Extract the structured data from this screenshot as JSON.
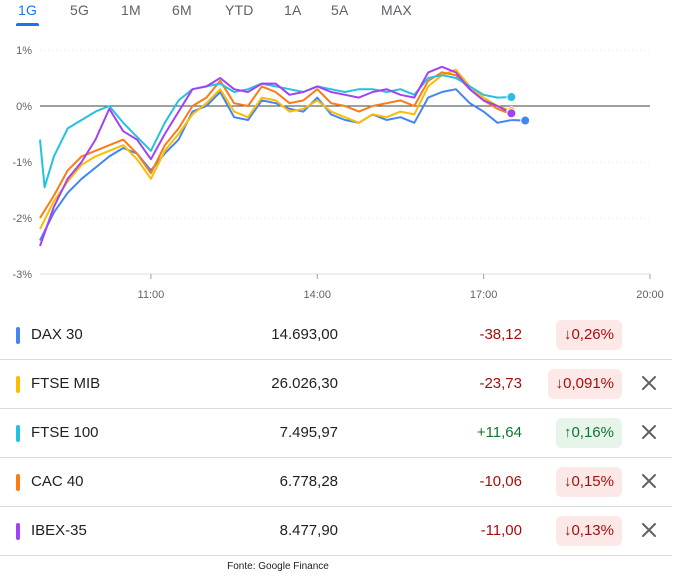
{
  "tabs": [
    {
      "label": "1G",
      "active": true
    },
    {
      "label": "5G",
      "active": false
    },
    {
      "label": "1M",
      "active": false
    },
    {
      "label": "6M",
      "active": false
    },
    {
      "label": "YTD",
      "active": false
    },
    {
      "label": "1A",
      "active": false
    },
    {
      "label": "5A",
      "active": false
    },
    {
      "label": "MAX",
      "active": false
    }
  ],
  "chart_data": {
    "type": "line",
    "ylim": [
      -3,
      1
    ],
    "yticks": [
      {
        "value": 1,
        "label": "1%"
      },
      {
        "value": 0,
        "label": "0%"
      },
      {
        "value": -1,
        "label": "-1%"
      },
      {
        "value": -2,
        "label": "-2%"
      },
      {
        "value": -3,
        "label": "-3%"
      }
    ],
    "xlim": [
      "09:00",
      "20:00"
    ],
    "xticks": [
      "11:00",
      "14:00",
      "17:00",
      "20:00"
    ],
    "series": [
      {
        "name": "DAX 30",
        "color": "#4285f4",
        "x": [
          "09:00",
          "09:15",
          "09:30",
          "09:45",
          "10:00",
          "10:15",
          "10:30",
          "10:45",
          "11:00",
          "11:15",
          "11:30",
          "11:45",
          "12:00",
          "12:15",
          "12:30",
          "12:45",
          "13:00",
          "13:15",
          "13:30",
          "13:45",
          "14:00",
          "14:15",
          "14:30",
          "14:45",
          "15:00",
          "15:15",
          "15:30",
          "15:45",
          "16:00",
          "16:15",
          "16:30",
          "16:45",
          "17:00",
          "17:15",
          "17:30",
          "17:45"
        ],
        "y": [
          -2.4,
          -1.9,
          -1.55,
          -1.3,
          -1.1,
          -0.9,
          -0.75,
          -0.85,
          -1.15,
          -0.85,
          -0.6,
          -0.1,
          0.0,
          0.25,
          -0.2,
          -0.25,
          0.1,
          0.05,
          -0.05,
          -0.1,
          0.15,
          -0.15,
          -0.25,
          -0.3,
          -0.15,
          -0.25,
          -0.2,
          -0.3,
          0.15,
          0.25,
          0.3,
          0.05,
          -0.1,
          -0.3,
          -0.25,
          -0.26
        ]
      },
      {
        "name": "FTSE MIB",
        "color": "#fbbc04",
        "x": [
          "09:00",
          "09:15",
          "09:30",
          "09:45",
          "10:00",
          "10:15",
          "10:30",
          "10:45",
          "11:00",
          "11:15",
          "11:30",
          "11:45",
          "12:00",
          "12:15",
          "12:30",
          "12:45",
          "13:00",
          "13:15",
          "13:30",
          "13:45",
          "14:00",
          "14:15",
          "14:30",
          "14:45",
          "15:00",
          "15:15",
          "15:30",
          "15:45",
          "16:00",
          "16:15",
          "16:30",
          "16:45",
          "17:00",
          "17:15",
          "17:30"
        ],
        "y": [
          -2.2,
          -1.7,
          -1.35,
          -1.05,
          -0.9,
          -0.8,
          -0.7,
          -0.95,
          -1.3,
          -0.8,
          -0.5,
          -0.15,
          0.05,
          0.3,
          -0.1,
          -0.2,
          0.15,
          0.1,
          -0.1,
          -0.05,
          0.1,
          -0.1,
          -0.2,
          -0.3,
          -0.15,
          -0.2,
          -0.1,
          -0.15,
          0.35,
          0.55,
          0.65,
          0.35,
          0.15,
          0.0,
          -0.09
        ]
      },
      {
        "name": "FTSE 100",
        "color": "#24c1e0",
        "x": [
          "09:00",
          "09:05",
          "09:15",
          "09:30",
          "09:45",
          "10:00",
          "10:15",
          "10:30",
          "10:45",
          "11:00",
          "11:15",
          "11:30",
          "11:45",
          "12:00",
          "12:15",
          "12:30",
          "12:45",
          "13:00",
          "13:15",
          "13:30",
          "13:45",
          "14:00",
          "14:15",
          "14:30",
          "14:45",
          "15:00",
          "15:15",
          "15:30",
          "15:45",
          "16:00",
          "16:15",
          "16:30",
          "16:45",
          "17:00",
          "17:15",
          "17:30"
        ],
        "y": [
          -0.6,
          -1.45,
          -0.9,
          -0.4,
          -0.25,
          -0.1,
          0.0,
          -0.3,
          -0.55,
          -0.8,
          -0.3,
          0.1,
          0.3,
          0.35,
          0.4,
          0.25,
          0.3,
          0.4,
          0.35,
          0.3,
          0.25,
          0.35,
          0.3,
          0.25,
          0.3,
          0.3,
          0.25,
          0.3,
          0.2,
          0.5,
          0.55,
          0.5,
          0.35,
          0.2,
          0.15,
          0.16
        ]
      },
      {
        "name": "CAC 40",
        "color": "#fa7b17",
        "x": [
          "09:00",
          "09:15",
          "09:30",
          "09:45",
          "10:00",
          "10:15",
          "10:30",
          "10:45",
          "11:00",
          "11:15",
          "11:30",
          "11:45",
          "12:00",
          "12:15",
          "12:30",
          "12:45",
          "13:00",
          "13:15",
          "13:30",
          "13:45",
          "14:00",
          "14:15",
          "14:30",
          "14:45",
          "15:00",
          "15:15",
          "15:30",
          "15:45",
          "16:00",
          "16:15",
          "16:30",
          "16:45",
          "17:00",
          "17:15",
          "17:30"
        ],
        "y": [
          -2.0,
          -1.6,
          -1.15,
          -0.9,
          -0.8,
          -0.7,
          -0.6,
          -0.85,
          -1.2,
          -0.7,
          -0.4,
          0.0,
          0.15,
          0.45,
          0.05,
          0.0,
          0.35,
          0.25,
          0.05,
          0.1,
          0.3,
          0.05,
          0.0,
          -0.1,
          0.0,
          0.05,
          0.1,
          0.0,
          0.45,
          0.6,
          0.55,
          0.3,
          0.1,
          -0.05,
          -0.15
        ]
      },
      {
        "name": "IBEX-35",
        "color": "#a142f4",
        "x": [
          "09:00",
          "09:15",
          "09:30",
          "09:45",
          "10:00",
          "10:15",
          "10:30",
          "10:45",
          "11:00",
          "11:15",
          "11:30",
          "11:45",
          "12:00",
          "12:15",
          "12:30",
          "12:45",
          "13:00",
          "13:15",
          "13:30",
          "13:45",
          "14:00",
          "14:15",
          "14:30",
          "14:45",
          "15:00",
          "15:15",
          "15:30",
          "15:45",
          "16:00",
          "16:15",
          "16:30",
          "16:45",
          "17:00",
          "17:15",
          "17:30"
        ],
        "y": [
          -2.5,
          -1.8,
          -1.3,
          -1.0,
          -0.6,
          -0.05,
          -0.45,
          -0.6,
          -0.95,
          -0.5,
          -0.1,
          0.3,
          0.35,
          0.5,
          0.3,
          0.25,
          0.4,
          0.4,
          0.2,
          0.25,
          0.35,
          0.25,
          0.2,
          0.15,
          0.25,
          0.3,
          0.2,
          0.15,
          0.6,
          0.7,
          0.6,
          0.3,
          0.1,
          0.0,
          -0.13
        ]
      }
    ]
  },
  "rows": [
    {
      "name": "DAX 30",
      "color": "#4285f4",
      "value": "14.693,00",
      "change": "-38,12",
      "percent": "0,26%",
      "direction": "down",
      "arrow": "↓",
      "closable": false
    },
    {
      "name": "FTSE MIB",
      "color": "#fbbc04",
      "value": "26.026,30",
      "change": "-23,73",
      "percent": "0,091%",
      "direction": "down",
      "arrow": "↓",
      "closable": true
    },
    {
      "name": "FTSE 100",
      "color": "#24c1e0",
      "value": "7.495,97",
      "change": "+11,64",
      "percent": "0,16%",
      "direction": "up",
      "arrow": "↑",
      "closable": true
    },
    {
      "name": "CAC 40",
      "color": "#fa7b17",
      "value": "6.778,28",
      "change": "-10,06",
      "percent": "0,15%",
      "direction": "down",
      "arrow": "↓",
      "closable": true
    },
    {
      "name": "IBEX-35",
      "color": "#a142f4",
      "value": "8.477,90",
      "change": "-11,00",
      "percent": "0,13%",
      "direction": "down",
      "arrow": "↓",
      "closable": true
    }
  ],
  "source": "Fonte: Google Finance"
}
